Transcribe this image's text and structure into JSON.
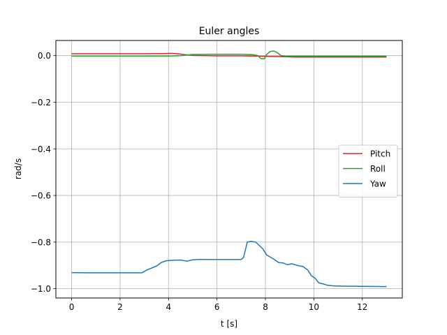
{
  "chart_data": {
    "type": "line",
    "title": "Euler angles",
    "xlabel": "t [s]",
    "ylabel": "rad/s",
    "xlim": [
      -0.65,
      13.65
    ],
    "ylim": [
      -1.04,
      0.065
    ],
    "xticks": [
      0,
      2,
      4,
      6,
      8,
      10,
      12
    ],
    "xtick_labels": [
      "0",
      "2",
      "4",
      "6",
      "8",
      "10",
      "12"
    ],
    "yticks": [
      0.0,
      -0.2,
      -0.4,
      -0.6,
      -0.8,
      -1.0
    ],
    "ytick_labels": [
      "0.0",
      "−0.2",
      "−0.4",
      "−0.6",
      "−0.8",
      "−1.0"
    ],
    "grid": true,
    "legend_position": "center-right",
    "series": [
      {
        "name": "Pitch",
        "color": "#d62728",
        "points": [
          [
            0,
            0.008
          ],
          [
            1,
            0.008
          ],
          [
            2,
            0.008
          ],
          [
            3,
            0.008
          ],
          [
            3.8,
            0.009
          ],
          [
            4.1,
            0.01
          ],
          [
            4.3,
            0.009
          ],
          [
            4.6,
            0.005
          ],
          [
            5,
            0.001
          ],
          [
            6,
            -0.001
          ],
          [
            7,
            -0.001
          ],
          [
            7.6,
            -0.002
          ],
          [
            8,
            -0.003
          ],
          [
            8.5,
            -0.004
          ],
          [
            9.2,
            -0.006
          ],
          [
            10,
            -0.006
          ],
          [
            11,
            -0.006
          ],
          [
            12,
            -0.006
          ],
          [
            13,
            -0.006
          ]
        ]
      },
      {
        "name": "Roll",
        "color": "#2ca02c",
        "points": [
          [
            0,
            -0.002
          ],
          [
            1,
            -0.002
          ],
          [
            2,
            -0.002
          ],
          [
            3,
            -0.002
          ],
          [
            4,
            -0.002
          ],
          [
            4.5,
            0.0
          ],
          [
            5,
            0.005
          ],
          [
            6,
            0.006
          ],
          [
            7,
            0.006
          ],
          [
            7.5,
            0.004
          ],
          [
            7.7,
            0.0
          ],
          [
            7.8,
            -0.012
          ],
          [
            7.95,
            -0.014
          ],
          [
            8.05,
            0.005
          ],
          [
            8.2,
            0.018
          ],
          [
            8.35,
            0.02
          ],
          [
            8.5,
            0.012
          ],
          [
            8.65,
            0.0
          ],
          [
            8.9,
            -0.002
          ],
          [
            9.5,
            -0.002
          ],
          [
            10,
            -0.002
          ],
          [
            11,
            -0.002
          ],
          [
            12,
            -0.002
          ],
          [
            13,
            -0.002
          ]
        ]
      },
      {
        "name": "Yaw",
        "color": "#1f77b4",
        "points": [
          [
            0,
            -0.931
          ],
          [
            1,
            -0.932
          ],
          [
            2,
            -0.932
          ],
          [
            2.9,
            -0.932
          ],
          [
            3.1,
            -0.92
          ],
          [
            3.5,
            -0.903
          ],
          [
            3.7,
            -0.888
          ],
          [
            3.9,
            -0.88
          ],
          [
            4.2,
            -0.878
          ],
          [
            4.5,
            -0.877
          ],
          [
            4.75,
            -0.882
          ],
          [
            5,
            -0.876
          ],
          [
            5.3,
            -0.874
          ],
          [
            6,
            -0.875
          ],
          [
            6.5,
            -0.875
          ],
          [
            7,
            -0.875
          ],
          [
            7.1,
            -0.865
          ],
          [
            7.25,
            -0.8
          ],
          [
            7.4,
            -0.797
          ],
          [
            7.6,
            -0.8
          ],
          [
            7.75,
            -0.815
          ],
          [
            7.9,
            -0.83
          ],
          [
            8.05,
            -0.855
          ],
          [
            8.3,
            -0.87
          ],
          [
            8.55,
            -0.888
          ],
          [
            8.75,
            -0.89
          ],
          [
            8.9,
            -0.897
          ],
          [
            9.1,
            -0.893
          ],
          [
            9.3,
            -0.9
          ],
          [
            9.55,
            -0.905
          ],
          [
            9.75,
            -0.92
          ],
          [
            9.9,
            -0.945
          ],
          [
            10.05,
            -0.955
          ],
          [
            10.2,
            -0.975
          ],
          [
            10.4,
            -0.98
          ],
          [
            10.55,
            -0.985
          ],
          [
            10.8,
            -0.988
          ],
          [
            11.2,
            -0.989
          ],
          [
            12,
            -0.99
          ],
          [
            13,
            -0.991
          ]
        ]
      }
    ]
  }
}
